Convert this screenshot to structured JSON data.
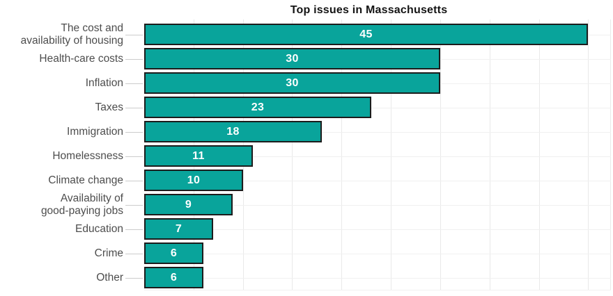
{
  "chart_data": {
    "type": "bar",
    "orientation": "horizontal",
    "title": "Top issues in Massachusetts",
    "categories": [
      "The cost and availability of housing",
      "Health-care costs",
      "Inflation",
      "Taxes",
      "Immigration",
      "Homelessness",
      "Climate change",
      "Availability of good-paying jobs",
      "Education",
      "Crime",
      "Other"
    ],
    "category_display_lines": [
      [
        "The cost and",
        "availability of housing"
      ],
      [
        "Health-care costs"
      ],
      [
        "Inflation"
      ],
      [
        "Taxes"
      ],
      [
        "Immigration"
      ],
      [
        "Homelessness"
      ],
      [
        "Climate change"
      ],
      [
        "Availability of",
        "good-paying jobs"
      ],
      [
        "Education"
      ],
      [
        "Crime"
      ],
      [
        "Other"
      ]
    ],
    "values": [
      45,
      30,
      30,
      23,
      18,
      11,
      10,
      9,
      7,
      6,
      6
    ],
    "value_labels": [
      "45",
      "30",
      "30",
      "23",
      "18",
      "11",
      "10",
      "9",
      "7",
      "6",
      "6"
    ],
    "value_label_position": "center-inside-bar",
    "xlabel": "",
    "ylabel": "",
    "xlim": [
      0,
      47.3
    ],
    "x_gridline_step": 5,
    "x_tick_labels_visible": false,
    "grid": "on",
    "legend_position": "none"
  },
  "colors": {
    "background": "#ffffff",
    "bar_fill": "#09a49b",
    "bar_border": "#1c1c1c",
    "value_text": "#ffffff",
    "category_text": "#4d4d4d",
    "title_text": "#141414",
    "grid_vertical": "#e9e9e9",
    "grid_horizontal": "#f0f0f0",
    "axis_tick": "#cccccc"
  }
}
